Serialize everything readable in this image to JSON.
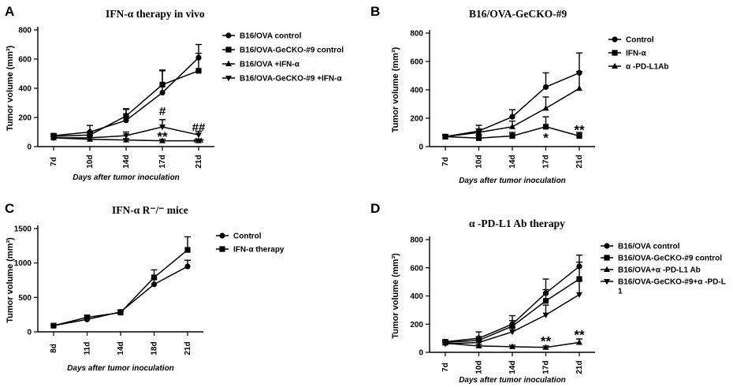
{
  "chart_data": [
    {
      "panel": "A",
      "type": "line",
      "title": "IFN-α  therapy in vivo",
      "ylabel": "Tumor volume  (mm³)",
      "xlabel": "Days after tumor inoculation",
      "categories": [
        "7d",
        "10d",
        "14d",
        "17d",
        "21d"
      ],
      "ylim": [
        0,
        800
      ],
      "yticks": [
        0,
        200,
        400,
        600,
        800
      ],
      "legend_position": "top-right",
      "series": [
        {
          "name": "B16/OVA control",
          "marker": "circle",
          "values": [
            75,
            100,
            180,
            370,
            610
          ],
          "errors": [
            15,
            45,
            80,
            150,
            90
          ]
        },
        {
          "name": "B16/OVA-GeCKO-#9 control",
          "marker": "square",
          "values": [
            70,
            80,
            210,
            425,
            520
          ],
          "errors": [
            15,
            20,
            45,
            100,
            120
          ]
        },
        {
          "name": "B16/OVA +IFN-α",
          "marker": "triangle-up",
          "values": [
            60,
            50,
            45,
            40,
            40
          ],
          "errors": [
            10,
            10,
            10,
            10,
            10
          ]
        },
        {
          "name": "B16/OVA-GeCKO-#9 +IFN-α",
          "marker": "triangle-down",
          "values": [
            60,
            60,
            75,
            135,
            80
          ],
          "errors": [
            10,
            15,
            25,
            50,
            25
          ]
        }
      ],
      "annotations": [
        {
          "text": "#",
          "x": "17d",
          "y": 245
        },
        {
          "text": "**",
          "x": "17d",
          "y": 70
        },
        {
          "text": "##",
          "x": "21d",
          "y": 135
        },
        {
          "text": "**",
          "x": "21d",
          "y": 30
        }
      ]
    },
    {
      "panel": "B",
      "type": "line",
      "title": "B16/OVA-GeCKO-#9",
      "ylabel": "Tumor volume  (mm³)",
      "xlabel": "Days after tumor inoculation",
      "categories": [
        "7d",
        "10d",
        "14d",
        "17d",
        "21d"
      ],
      "ylim": [
        0,
        800
      ],
      "yticks": [
        0,
        200,
        400,
        600,
        800
      ],
      "legend_position": "top-right",
      "series": [
        {
          "name": "Control",
          "marker": "circle",
          "values": [
            70,
            110,
            210,
            420,
            520
          ],
          "errors": [
            15,
            40,
            50,
            100,
            140
          ]
        },
        {
          "name": "IFN-α",
          "marker": "square",
          "values": [
            70,
            60,
            75,
            140,
            75
          ],
          "errors": [
            10,
            20,
            25,
            70,
            25
          ]
        },
        {
          "name": "α -PD-L1Ab",
          "marker": "triangle-up",
          "values": [
            70,
            100,
            140,
            270,
            410
          ],
          "errors": [
            10,
            25,
            40,
            80,
            120
          ]
        }
      ],
      "annotations": [
        {
          "text": "*",
          "x": "17d",
          "y": 65
        },
        {
          "text": "**",
          "x": "21d",
          "y": 120
        }
      ]
    },
    {
      "panel": "C",
      "type": "line",
      "title": "IFN-α R⁻/⁻ mice",
      "ylabel": "Tumor volume  (mm³)",
      "xlabel": "Days after tumor inoculation",
      "categories": [
        "8d",
        "11d",
        "14d",
        "18d",
        "21d"
      ],
      "ylim": [
        0,
        1500
      ],
      "yticks": [
        0,
        500,
        1000,
        1500
      ],
      "legend_position": "top-right",
      "series": [
        {
          "name": "Control",
          "marker": "circle",
          "values": [
            90,
            180,
            290,
            690,
            950
          ],
          "errors": [
            10,
            30,
            30,
            80,
            90
          ]
        },
        {
          "name": "IFN-α  therapy",
          "marker": "square",
          "values": [
            90,
            210,
            280,
            790,
            1190
          ],
          "errors": [
            10,
            30,
            30,
            110,
            190
          ]
        }
      ],
      "annotations": []
    },
    {
      "panel": "D",
      "type": "line",
      "title": "α -PD-L1 Ab therapy",
      "ylabel": "Tumor volume  (mm³)",
      "xlabel": "Days after tumor inoculation",
      "categories": [
        "7d",
        "10d",
        "14d",
        "17d",
        "21d"
      ],
      "ylim": [
        0,
        800
      ],
      "yticks": [
        0,
        200,
        400,
        600,
        800
      ],
      "legend_position": "top-right",
      "series": [
        {
          "name": "B16/OVA control",
          "marker": "circle",
          "values": [
            75,
            100,
            200,
            420,
            610
          ],
          "errors": [
            15,
            45,
            60,
            100,
            80
          ]
        },
        {
          "name": "B16/OVA-GeCKO-#9 control",
          "marker": "square",
          "values": [
            70,
            85,
            185,
            365,
            520
          ],
          "errors": [
            15,
            25,
            40,
            80,
            120
          ]
        },
        {
          "name": "B16/OVA+α -PD-L1 Ab",
          "marker": "triangle-up",
          "values": [
            65,
            45,
            40,
            35,
            70
          ],
          "errors": [
            10,
            10,
            10,
            10,
            25
          ]
        },
        {
          "name": "B16/OVA-GeCKO-#9+α -PD-L1",
          "marker": "triangle-down",
          "values": [
            60,
            70,
            145,
            265,
            410
          ],
          "errors": [
            10,
            20,
            30,
            70,
            100
          ]
        }
      ],
      "annotations": [
        {
          "text": "**",
          "x": "17d",
          "y": 80
        },
        {
          "text": "**",
          "x": "21d",
          "y": 125
        }
      ]
    }
  ]
}
